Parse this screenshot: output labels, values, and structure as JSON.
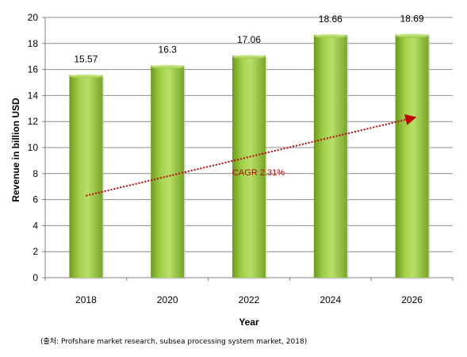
{
  "chart_data": {
    "type": "bar",
    "categories": [
      "2018",
      "2020",
      "2022",
      "2024",
      "2026"
    ],
    "values": [
      15.57,
      16.3,
      17.06,
      18.66,
      18.69
    ],
    "value_labels": [
      "15.57",
      "16.3",
      "17.06",
      "18.66",
      "18.69"
    ],
    "xlabel": "Year",
    "ylabel": "Revenue in billion USD",
    "ylim": [
      0,
      20
    ],
    "yticks": [
      0,
      2,
      4,
      6,
      8,
      10,
      12,
      14,
      16,
      18,
      20
    ],
    "ytick_labels": [
      "0",
      "2",
      "4",
      "6",
      "8",
      "10",
      "12",
      "14",
      "16",
      "18",
      "20"
    ],
    "grid": true,
    "legend": "none",
    "annotation": {
      "text": "CAGR 2.31%",
      "type": "trend-arrow",
      "start_value": 6.3,
      "end_value": 12.3,
      "color": "#c00000"
    },
    "bar_color": "#8fc13a",
    "source": "(출처: Profshare market research, subsea processing system market, 2018)"
  }
}
